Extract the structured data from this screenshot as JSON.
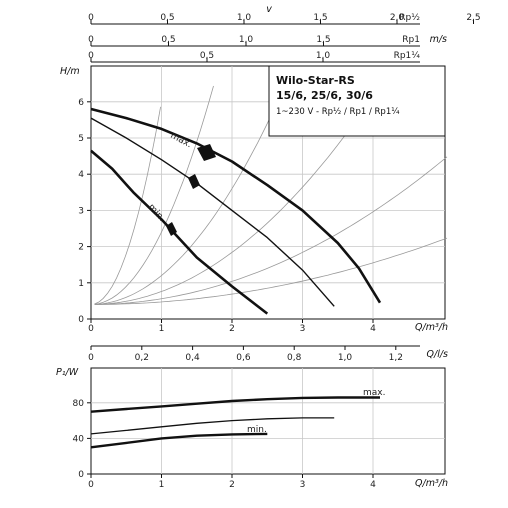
{
  "top_scales": {
    "v_label": "v",
    "scales": [
      {
        "unit": "Rp½",
        "ticks": [
          0,
          0.5,
          1.0,
          1.5,
          2.0,
          2.5
        ],
        "labels": [
          "0",
          "0,5",
          "1,0",
          "1,5",
          "2,0",
          "2,5"
        ]
      },
      {
        "unit": "Rp1",
        "ticks": [
          0,
          0.5,
          1.0,
          1.5
        ],
        "labels": [
          "0",
          "0,5",
          "1,0",
          "1,5"
        ],
        "unit_right": "m/s"
      },
      {
        "unit": "Rp1¼",
        "ticks": [
          0,
          0.5,
          1.0
        ],
        "labels": [
          "0",
          "0,5",
          "1,0"
        ]
      }
    ]
  },
  "title_box": {
    "line1": "Wilo-Star-RS",
    "line2": "15/6, 25/6, 30/6",
    "line3": "1~230 V - Rp½ / Rp1 / Rp1¼"
  },
  "chart_data": [
    {
      "type": "line",
      "ylabel": "H/m",
      "xlabel": "Q/m³/h",
      "xlim": [
        0,
        5
      ],
      "ylim": [
        0,
        6.5
      ],
      "x_ticks": [
        0,
        1,
        2,
        3,
        4
      ],
      "y_ticks": [
        0,
        1,
        2,
        3,
        4,
        5,
        6
      ],
      "series": [
        {
          "name": "max.",
          "points": [
            [
              0,
              5.8
            ],
            [
              0.5,
              5.55
            ],
            [
              1,
              5.25
            ],
            [
              1.5,
              4.85
            ],
            [
              2,
              4.35
            ],
            [
              2.5,
              3.7
            ],
            [
              3,
              3.0
            ],
            [
              3.5,
              2.1
            ],
            [
              3.8,
              1.4
            ],
            [
              4.1,
              0.45
            ]
          ]
        },
        {
          "name": "",
          "points": [
            [
              0,
              5.55
            ],
            [
              0.5,
              5.0
            ],
            [
              1,
              4.4
            ],
            [
              1.5,
              3.75
            ],
            [
              2,
              3.0
            ],
            [
              2.5,
              2.25
            ],
            [
              3,
              1.35
            ],
            [
              3.45,
              0.35
            ]
          ]
        },
        {
          "name": "min.",
          "points": [
            [
              0,
              4.65
            ],
            [
              0.3,
              4.15
            ],
            [
              0.6,
              3.5
            ],
            [
              1,
              2.75
            ],
            [
              1.5,
              1.7
            ],
            [
              2,
              0.9
            ],
            [
              2.5,
              0.15
            ]
          ]
        }
      ],
      "system_curves": [
        0.018,
        0.04,
        0.09,
        0.2,
        0.5,
        1.4
      ]
    },
    {
      "type": "line",
      "ylabel": "P₁/W",
      "xlabel": "Q/m³/h",
      "xlim": [
        0,
        5
      ],
      "ylim": [
        0,
        100
      ],
      "x_ticks": [
        0,
        1,
        2,
        3,
        4
      ],
      "y_ticks": [
        0,
        40,
        80
      ],
      "series": [
        {
          "name": "max.",
          "points": [
            [
              0,
              70
            ],
            [
              0.5,
              73
            ],
            [
              1,
              76
            ],
            [
              1.5,
              79
            ],
            [
              2,
              82
            ],
            [
              2.5,
              84
            ],
            [
              3,
              85.5
            ],
            [
              3.5,
              86
            ],
            [
              4.1,
              86
            ]
          ]
        },
        {
          "name": "",
          "points": [
            [
              0,
              45
            ],
            [
              0.5,
              49
            ],
            [
              1,
              53
            ],
            [
              1.5,
              57
            ],
            [
              2,
              60
            ],
            [
              2.5,
              62
            ],
            [
              3,
              63
            ],
            [
              3.45,
              63
            ]
          ]
        },
        {
          "name": "min.",
          "points": [
            [
              0,
              30
            ],
            [
              0.5,
              35
            ],
            [
              1,
              40
            ],
            [
              1.5,
              43
            ],
            [
              2,
              44.5
            ],
            [
              2.5,
              45
            ]
          ]
        }
      ]
    }
  ],
  "mid_scale": {
    "unit": "Q/l/s",
    "ticks": [
      0,
      0.2,
      0.4,
      0.6,
      0.8,
      1.0,
      1.2
    ],
    "labels": [
      "0",
      "0,2",
      "0,4",
      "0,6",
      "0,8",
      "1,0",
      "1,2"
    ]
  }
}
